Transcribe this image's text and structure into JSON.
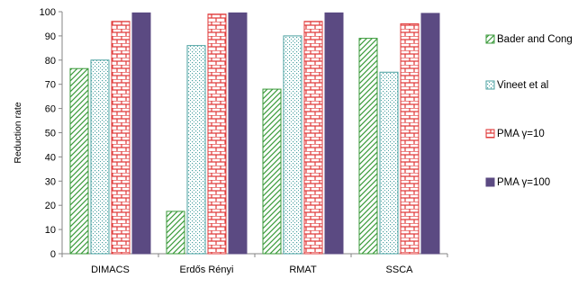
{
  "chart_data": {
    "type": "bar",
    "categories": [
      "DIMACS",
      "Erdős Rényi",
      "RMAT",
      "SSCA"
    ],
    "series": [
      {
        "name": "Bader and Cong",
        "values": [
          76.5,
          17.5,
          68,
          89
        ],
        "color": "#3a9a3a",
        "pattern": "diagonal-hatch"
      },
      {
        "name": "Vineet et al",
        "values": [
          80,
          86,
          90,
          75
        ],
        "color": "#4aa0a0",
        "pattern": "dots"
      },
      {
        "name": "PMA γ=10",
        "values": [
          96,
          99,
          96,
          95
        ],
        "color": "#e03a3a",
        "pattern": "brick"
      },
      {
        "name": "PMA γ=100",
        "values": [
          99.5,
          99.5,
          99.5,
          99.3
        ],
        "color": "#5b4a82",
        "pattern": "solid"
      }
    ],
    "xlabel": "",
    "ylabel": "Reduction rate",
    "ylim": [
      0,
      100
    ],
    "yticks": [
      "0",
      "10",
      "20",
      "30",
      "40",
      "50",
      "60",
      "70",
      "80",
      "90",
      "100"
    ],
    "grid": false,
    "legend_position": "right"
  }
}
